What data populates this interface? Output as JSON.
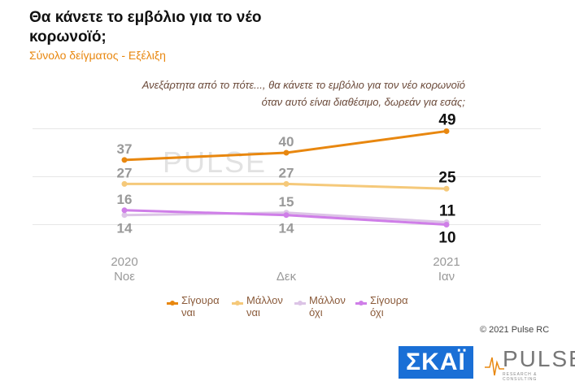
{
  "header": {
    "title": "Θα κάνετε το εμβόλιο για το νέο κορωνοϊό;",
    "subtitle": "Σύνολο δείγματος - Εξέλιξη",
    "question_line1": "Ανεξάρτητα από το πότε..., θα κάνετε το εμβόλιο για τον νέο κορωνοϊό",
    "question_line2": "όταν αυτό είναι διαθέσιμο, δωρεάν για εσάς;"
  },
  "chart_data": {
    "type": "line",
    "categories": [
      "2020 Νοε",
      "Δεκ",
      "2021 Ιαν"
    ],
    "category_lines": [
      [
        "2020",
        "Νοε"
      ],
      [
        "",
        "Δεκ"
      ],
      [
        "2021",
        "Ιαν"
      ]
    ],
    "series": [
      {
        "name": "Σίγουρα ναι",
        "values": [
          37,
          40,
          49
        ],
        "color": "#e8870f"
      },
      {
        "name": "Μάλλον ναι",
        "values": [
          27,
          27,
          25
        ],
        "color": "#f5c97a"
      },
      {
        "name": "Μάλλον όχι",
        "values": [
          14,
          15,
          11
        ],
        "color": "#dcc4e6"
      },
      {
        "name": "Σίγουρα όχι",
        "values": [
          16,
          14,
          10
        ],
        "color": "#cf7ee8"
      }
    ],
    "legend": "bottom",
    "grid": true
  },
  "legend": [
    {
      "l1": "Σίγουρα",
      "l2": "ναι"
    },
    {
      "l1": "Μάλλον",
      "l2": "ναι"
    },
    {
      "l1": "Μάλλον",
      "l2": "όχι"
    },
    {
      "l1": "Σίγουρα",
      "l2": "όχι"
    }
  ],
  "footer": {
    "copyright": "© 2021 Pulse RC",
    "skai_logo": "ΣΚΑΪ",
    "pulse_logo": "PULSE",
    "pulse_tagline": "RESEARCH & CONSULTING"
  }
}
